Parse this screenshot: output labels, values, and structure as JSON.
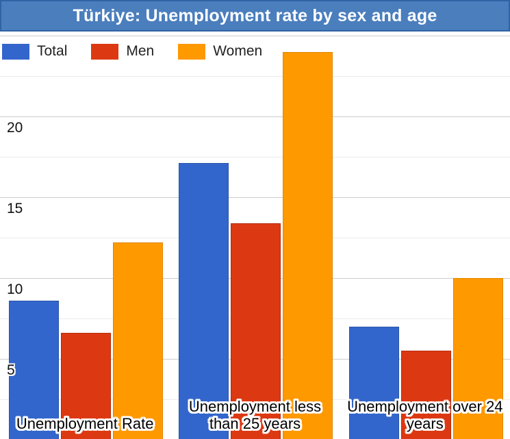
{
  "window": {
    "title": "Türkiye: Unemployment rate by sex and age",
    "title_bar_color": "#4A7EBD",
    "title_bar_border_color": "#2F63A4",
    "title_text_color": "#FFFFFF"
  },
  "legend": {
    "items": [
      {
        "label": "Total",
        "color": "#3366CC"
      },
      {
        "label": "Men",
        "color": "#DC3912"
      },
      {
        "label": "Women",
        "color": "#FF9900"
      }
    ]
  },
  "chart_data": {
    "type": "bar",
    "title": "Türkiye: Unemployment rate by sex and age",
    "categories": [
      "Unemployment Rate",
      "Unemployment less than 25 years",
      "Unemployment over 24 years"
    ],
    "category_label_lines": [
      [
        "Unemployment Rate"
      ],
      [
        "Unemployment less",
        "than 25 years"
      ],
      [
        "Unemployment over 24",
        "years"
      ]
    ],
    "series": [
      {
        "name": "Total",
        "color": "#3366CC",
        "border_color": "#2A55A8",
        "values": [
          8.6,
          17.1,
          7.0
        ]
      },
      {
        "name": "Men",
        "color": "#DC3912",
        "border_color": "#B52B0D",
        "values": [
          6.6,
          13.4,
          5.5
        ]
      },
      {
        "name": "Women",
        "color": "#FF9900",
        "border_color": "#E08600",
        "values": [
          12.2,
          24.0,
          10.0
        ]
      }
    ],
    "xlabel": "",
    "ylabel": "",
    "y_ticks": [
      5,
      10,
      15,
      20
    ],
    "ylim": [
      0,
      25.2
    ],
    "grid": {
      "major_step": 5,
      "minor_step": 2.5,
      "major_color": "#CCCCCC",
      "minor_color": "#EBEBEB",
      "vertical": false
    },
    "legend_position": "top-left",
    "baseline_cut_off_bottom": true
  }
}
